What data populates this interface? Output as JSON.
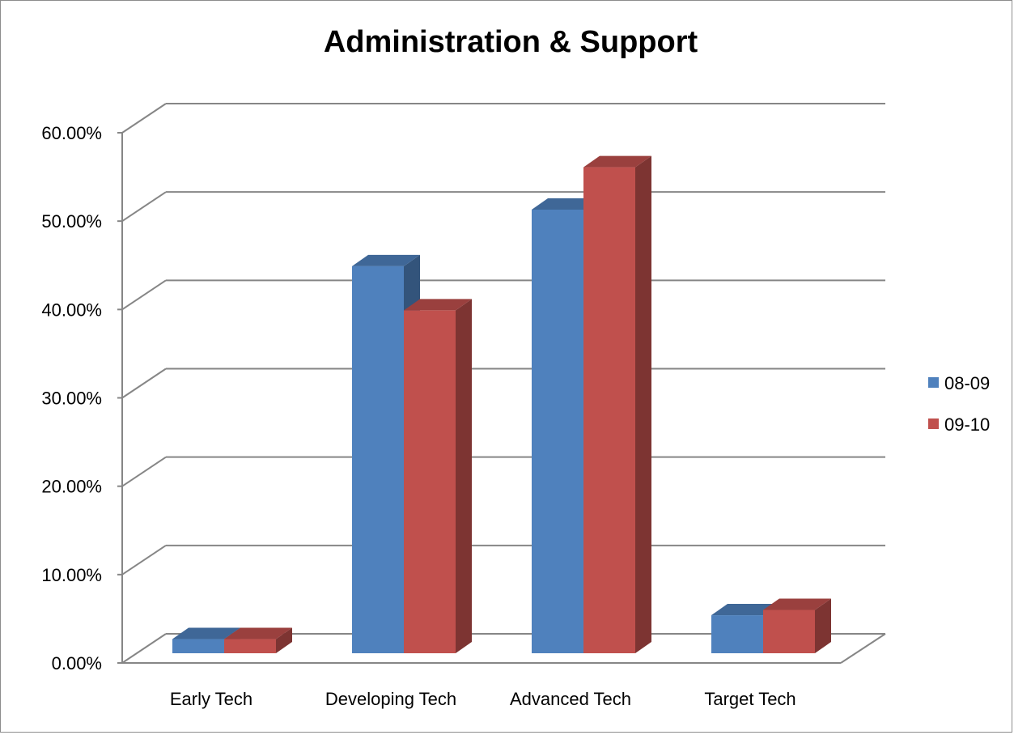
{
  "chart_data": {
    "type": "bar",
    "title": "Administration & Support",
    "categories": [
      "Early Tech",
      "Developing Tech",
      "Advanced Tech",
      "Target Tech"
    ],
    "series": [
      {
        "name": "08-09",
        "values": [
          1.6,
          43.8,
          50.2,
          4.3
        ],
        "color": "#4f81bd"
      },
      {
        "name": "09-10",
        "values": [
          1.6,
          38.8,
          55.0,
          4.9
        ],
        "color": "#c0504d"
      }
    ],
    "ylim": [
      0,
      60
    ],
    "yticks": [
      "0.00%",
      "10.00%",
      "20.00%",
      "30.00%",
      "40.00%",
      "50.00%",
      "60.00%"
    ],
    "xlabel": "",
    "ylabel": "",
    "grid": true,
    "legend_position": "right",
    "style": "3d-clustered-column"
  }
}
